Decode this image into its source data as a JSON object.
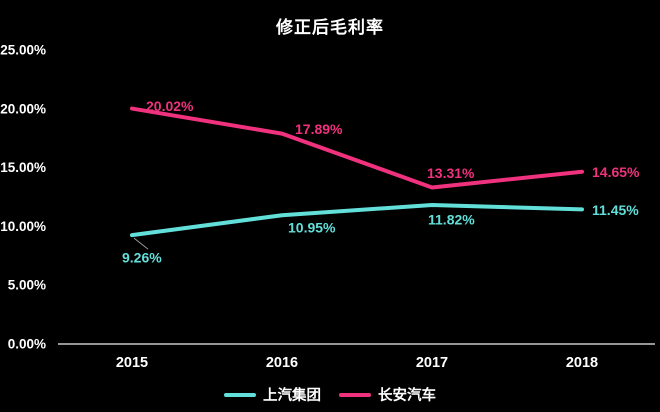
{
  "chart_data": {
    "type": "line",
    "title": "修正后毛利率",
    "categories": [
      "2015",
      "2016",
      "2017",
      "2018"
    ],
    "series": [
      {
        "name": "上汽集团",
        "values": [
          9.26,
          10.95,
          11.82,
          11.45
        ],
        "data_labels": [
          "9.26%",
          "10.95%",
          "11.82%",
          "11.45%"
        ],
        "color": "#63DFD9"
      },
      {
        "name": "长安汽车",
        "values": [
          20.02,
          17.89,
          13.31,
          14.65
        ],
        "data_labels": [
          "20.02%",
          "17.89%",
          "13.31%",
          "14.65%"
        ],
        "color": "#F0327E"
      }
    ],
    "y_ticks": [
      "25.00%",
      "20.00%",
      "15.00%",
      "10.00%",
      "5.00%",
      "0.00%"
    ],
    "y_tick_values": [
      25,
      20,
      15,
      10,
      5,
      0
    ],
    "ylim": [
      0,
      25
    ],
    "xlabel": "",
    "ylabel": "",
    "grid": false,
    "legend_position": "bottom",
    "background_color": "#000000",
    "axis_color": "#C8C8C8",
    "text_color": "#FFFFFF",
    "leader_line_color": "#999999"
  }
}
